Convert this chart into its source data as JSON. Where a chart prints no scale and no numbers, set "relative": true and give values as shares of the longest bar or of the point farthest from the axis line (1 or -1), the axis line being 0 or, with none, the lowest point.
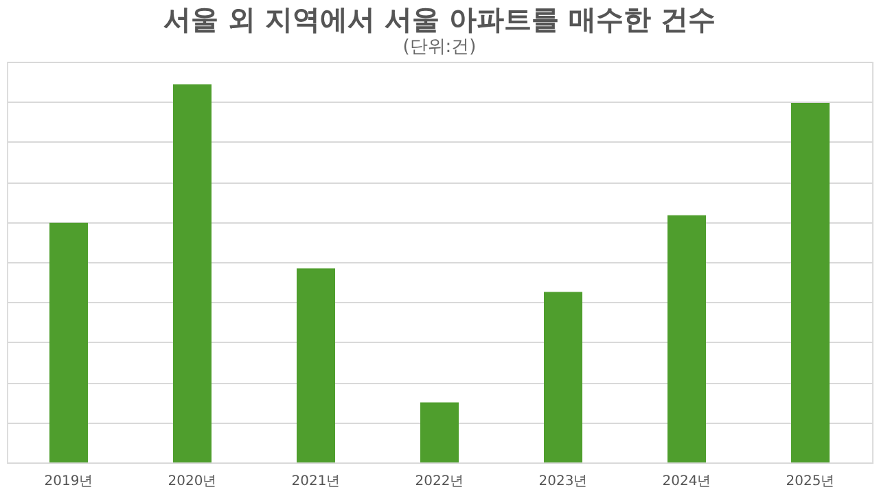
{
  "chart_data": {
    "type": "bar",
    "title": "서울 외 지역에서 서울 아파트를 매수한 건수",
    "subtitle": "(단위:건)",
    "categories": [
      "2019년",
      "2020년",
      "2021년",
      "2022년",
      "2023년",
      "2024년",
      "2025년"
    ],
    "values": [
      0.634,
      1,
      0.513,
      0.159,
      0.451,
      0.654,
      0.951
    ],
    "relative": true,
    "color": "#4f9e2d",
    "grid": "y",
    "tick_labels": "x"
  }
}
